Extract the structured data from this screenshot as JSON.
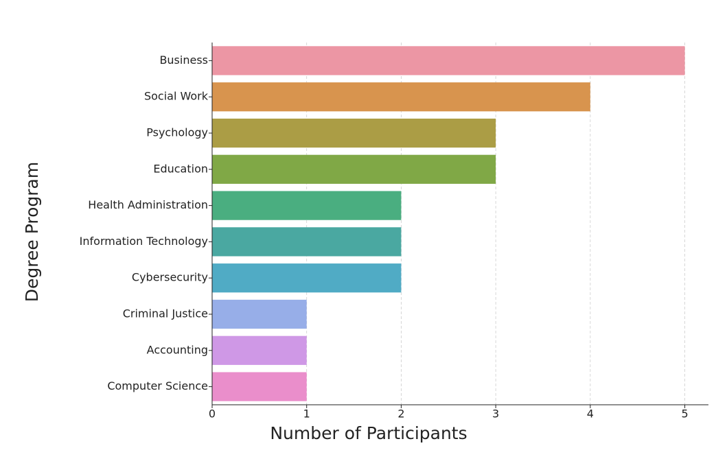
{
  "chart_data": {
    "type": "bar",
    "orientation": "horizontal",
    "categories": [
      "Business",
      "Social Work",
      "Psychology",
      "Education",
      "Health Administration",
      "Information Technology",
      "Cybersecurity",
      "Criminal Justice",
      "Accounting",
      "Computer Science"
    ],
    "values": [
      5,
      4,
      3,
      3,
      2,
      2,
      2,
      1,
      1,
      1
    ],
    "colors": [
      "#ec96a4",
      "#d8944e",
      "#ab9d45",
      "#80a846",
      "#4aae80",
      "#4aa8a1",
      "#50abc5",
      "#97aee8",
      "#cf98e6",
      "#ea8ecb"
    ],
    "xlabel": "Number of Participants",
    "ylabel": "Degree Program",
    "xlim": [
      0,
      5.25
    ],
    "xticks": [
      0,
      1,
      2,
      3,
      4,
      5
    ],
    "grid": true
  }
}
